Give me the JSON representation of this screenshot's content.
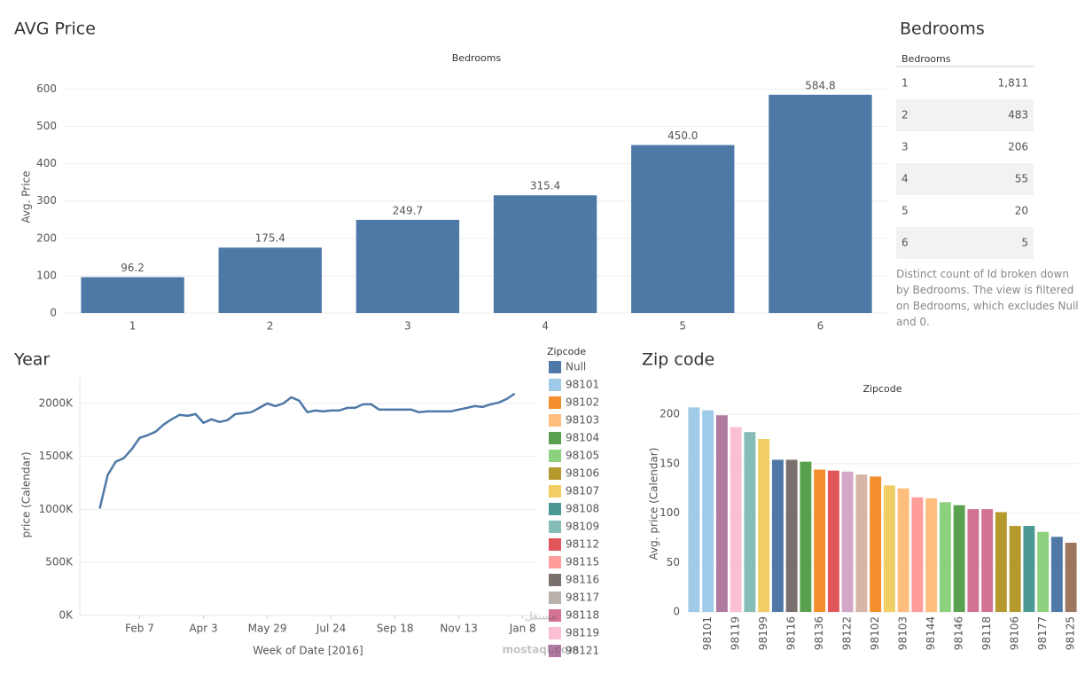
{
  "chart_data": [
    {
      "type": "bar",
      "title": "AVG Price",
      "x_label": "Bedrooms",
      "y_label": "Avg. Price",
      "categories": [
        "1",
        "2",
        "3",
        "4",
        "5",
        "6"
      ],
      "values": [
        96.2,
        175.4,
        249.7,
        315.4,
        450.0,
        584.8
      ],
      "value_labels": [
        "96.2",
        "175.4",
        "249.7",
        "315.4",
        "450.0",
        "584.8"
      ],
      "color": "#4e79a7",
      "ylim": [
        0,
        620
      ],
      "yticks": [
        0,
        100,
        200,
        300,
        400,
        500,
        600
      ],
      "grid": true
    },
    {
      "type": "line",
      "title": "Year",
      "x_label": "Week of Date [2016]",
      "y_label": "price (Calendar)",
      "x": [
        1,
        2,
        3,
        4,
        5,
        6,
        7,
        8,
        9,
        10,
        11,
        12,
        13,
        14,
        15,
        16,
        17,
        18,
        19,
        20,
        21,
        22,
        23,
        24,
        25,
        26,
        27,
        28,
        29,
        30,
        31,
        32,
        33,
        34,
        35,
        36,
        37,
        38,
        39,
        40,
        41,
        42,
        43,
        44,
        45,
        46,
        47,
        48,
        49,
        50,
        51,
        52,
        53
      ],
      "series": [
        {
          "name": "Null",
          "color": "#4e79a7",
          "values": [
            1008000,
            1325000,
            1450000,
            1483000,
            1567000,
            1675000,
            1700000,
            1733000,
            1800000,
            1850000,
            1892000,
            1883000,
            1900000,
            1817000,
            1850000,
            1825000,
            1842000,
            1900000,
            1908000,
            1917000,
            1958000,
            2000000,
            1975000,
            2000000,
            2058000,
            2025000,
            1917000,
            1933000,
            1925000,
            1933000,
            1933000,
            1958000,
            1958000,
            1992000,
            1992000,
            1942000,
            1942000,
            1942000,
            1942000,
            1942000,
            1917000,
            1925000,
            1925000,
            1925000,
            1925000,
            1942000,
            1958000,
            1975000,
            1967000,
            1992000,
            2008000,
            2042000,
            2092000
          ]
        }
      ],
      "xlim": [
        -1.5,
        55.7
      ],
      "xticks": [
        {
          "value": 6,
          "label": "Feb 7"
        },
        {
          "value": 14,
          "label": "Apr 3"
        },
        {
          "value": 22,
          "label": "May 29"
        },
        {
          "value": 30,
          "label": "Jul 24"
        },
        {
          "value": 38,
          "label": "Sep 18"
        },
        {
          "value": 46,
          "label": "Nov 13"
        },
        {
          "value": 54,
          "label": "Jan 8"
        }
      ],
      "ylim": [
        0,
        2250000
      ],
      "yticks": [
        {
          "value": 0,
          "label": "0K"
        },
        {
          "value": 500000,
          "label": "500K"
        },
        {
          "value": 1000000,
          "label": "1000K"
        },
        {
          "value": 1500000,
          "label": "1500K"
        },
        {
          "value": 2000000,
          "label": "2000K"
        }
      ],
      "grid": true
    },
    {
      "type": "bar",
      "title": "Zip code",
      "x_label": "Zipcode",
      "y_label": "Avg. price (Calendar)",
      "categories": [
        null,
        "98101",
        null,
        "98119",
        null,
        "98199",
        null,
        "98116",
        null,
        "98136",
        null,
        "98122",
        null,
        "98102",
        null,
        "98103",
        null,
        "98144",
        null,
        "98146",
        null,
        "98118",
        null,
        "98106",
        null,
        "98177",
        null,
        "98125"
      ],
      "values": [
        207,
        204,
        199,
        187,
        182,
        175,
        154,
        154,
        152,
        144,
        143,
        142,
        139,
        137,
        128,
        125,
        116,
        115,
        111,
        108,
        104,
        104,
        101,
        87,
        87,
        81,
        76,
        70
      ],
      "colors": [
        "#a0cbe8",
        "#a0cbe8",
        "#b07aa1",
        "#fabfd2",
        "#86bcb6",
        "#f1ce63",
        "#4e79a7",
        "#79706e",
        "#59a14f",
        "#f28e2b",
        "#e15759",
        "#d4a6c8",
        "#d7b5a6",
        "#f28e2b",
        "#f1ce63",
        "#ffbe7d",
        "#ff9d9a",
        "#ffbe7d",
        "#8cd17d",
        "#59a14f",
        "#d37295",
        "#d37295",
        "#b6992d",
        "#b6992d",
        "#499894",
        "#8cd17d",
        "#4e79a7",
        "#9d7660"
      ],
      "ylim": [
        0,
        210
      ],
      "yticks": [
        0,
        50,
        100,
        150,
        200
      ],
      "grid": true
    }
  ],
  "legend": {
    "title": "Zipcode",
    "items": [
      {
        "name": "Null",
        "color": "#4e79a7"
      },
      {
        "name": "98101",
        "color": "#a0cbe8"
      },
      {
        "name": "98102",
        "color": "#f28e2b"
      },
      {
        "name": "98103",
        "color": "#ffbe7d"
      },
      {
        "name": "98104",
        "color": "#59a14f"
      },
      {
        "name": "98105",
        "color": "#8cd17d"
      },
      {
        "name": "98106",
        "color": "#b6992d"
      },
      {
        "name": "98107",
        "color": "#f1ce63"
      },
      {
        "name": "98108",
        "color": "#499894"
      },
      {
        "name": "98109",
        "color": "#86bcb6"
      },
      {
        "name": "98112",
        "color": "#e15759"
      },
      {
        "name": "98115",
        "color": "#ff9d9a"
      },
      {
        "name": "98116",
        "color": "#79706e"
      },
      {
        "name": "98117",
        "color": "#bab0ac"
      },
      {
        "name": "98118",
        "color": "#d37295"
      },
      {
        "name": "98119",
        "color": "#fabfd2"
      },
      {
        "name": "98121",
        "color": "#b07aa1"
      }
    ]
  },
  "table": {
    "title": "Bedrooms",
    "header": "Bedrooms",
    "rows": [
      [
        "1",
        "1,811"
      ],
      [
        "2",
        "483"
      ],
      [
        "3",
        "206"
      ],
      [
        "4",
        "55"
      ],
      [
        "5",
        "20"
      ],
      [
        "6",
        "5"
      ]
    ],
    "caption": "Distinct count of Id broken down by Bedrooms. The view is filtered on Bedrooms, which excludes Null and 0."
  },
  "watermark": [
    "مستقل",
    "mostaql.com"
  ]
}
